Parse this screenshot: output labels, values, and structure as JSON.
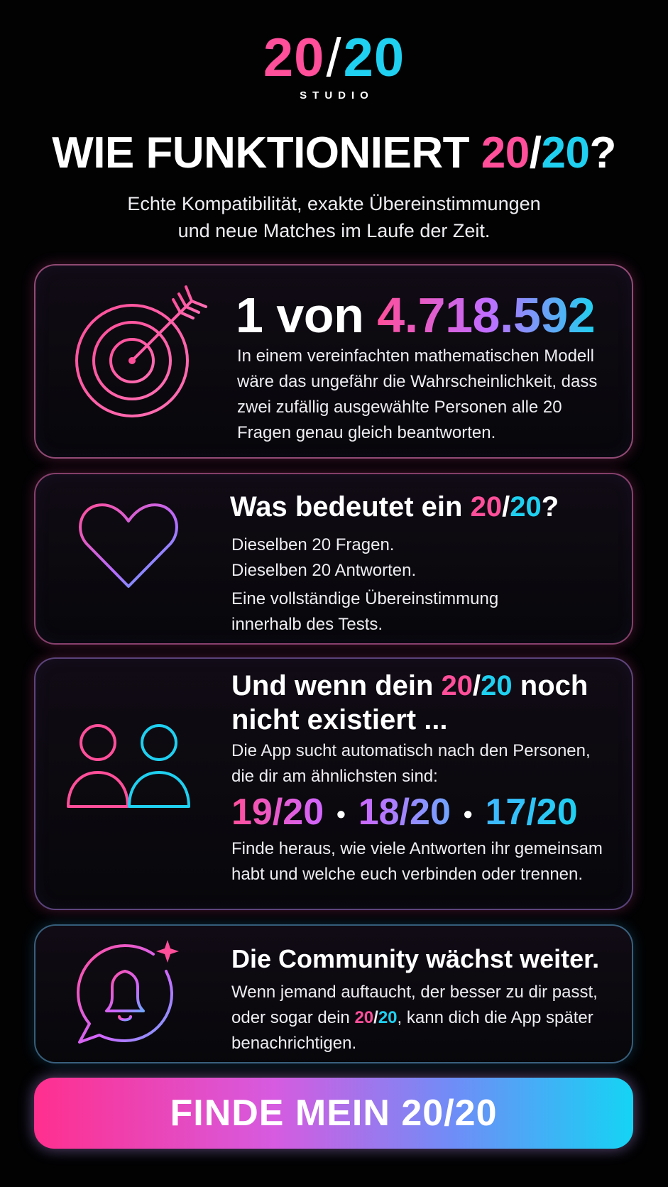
{
  "logo": {
    "left": "20",
    "slash": "/",
    "right": "20",
    "subtitle": "STUDIO"
  },
  "headline": {
    "prefix": "WIE FUNKTIONIERT ",
    "left": "20",
    "slash": "/",
    "right": "20",
    "suffix": "?"
  },
  "subline": {
    "line1": "Echte Kompatibilität, exakte Übereinstimmungen",
    "line2": "und neue Matches im Laufe der Zeit."
  },
  "card1": {
    "icon": "target-arrow-icon",
    "title_prefix": "1 von ",
    "title_number": "4.718.592",
    "text": "In einem vereinfachten mathematischen Modell wäre das ungefähr die Wahrscheinlichkeit, dass zwei zufällig ausgewählte Personen alle 20 Fragen genau gleich beantworten."
  },
  "card2": {
    "icon": "heart-icon",
    "title_prefix": "Was bedeutet ein ",
    "title_left": "20",
    "title_slash": "/",
    "title_right": "20",
    "title_suffix": "?",
    "line1": "Dieselben 20 Fragen.",
    "line2": "Dieselben 20 Antworten.",
    "line3": "Eine vollständige Übereinstimmung innerhalb des Tests."
  },
  "card3": {
    "icon": "two-people-icon",
    "title_prefix": "Und wenn dein ",
    "title_left": "20",
    "title_slash": "/",
    "title_right": "20",
    "title_suffix": " noch nicht existiert ...",
    "text1": "Die App sucht automatisch nach den Personen, die dir am ähnlichsten sind:",
    "scores": [
      "19/20",
      "18/20",
      "17/20"
    ],
    "separator": "•",
    "text2": "Finde heraus, wie viele Antworten ihr gemeinsam habt und welche euch verbinden oder trennen."
  },
  "card4": {
    "icon": "notification-bell-icon",
    "title": "Die Community wächst weiter.",
    "text_prefix": "Wenn jemand auftaucht, der besser zu dir passt, oder sogar dein ",
    "text_left": "20",
    "text_slash": "/",
    "text_right": "20",
    "text_suffix": ", kann dich die App später benachrichtigen."
  },
  "cta": {
    "label": "FINDE MEIN 20/20"
  },
  "colors": {
    "pink": "#ff4f9a",
    "blue": "#1fd0f0",
    "background": "#020203"
  }
}
